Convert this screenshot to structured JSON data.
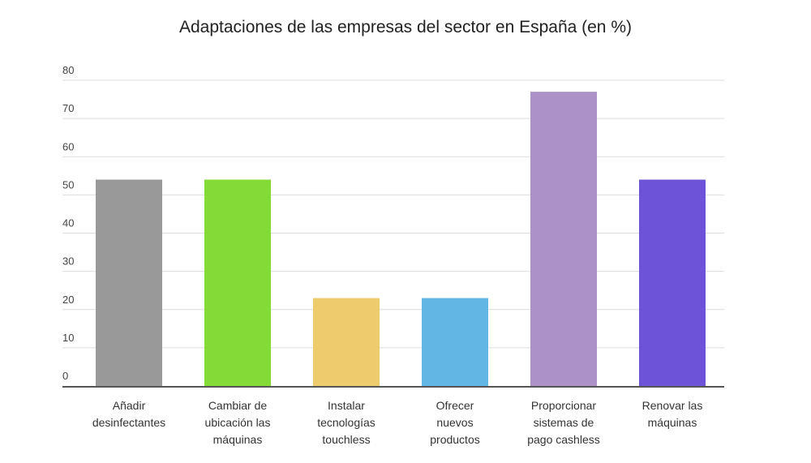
{
  "chart_data": {
    "type": "bar",
    "title": "Adaptaciones de las empresas del sector en España (en %)",
    "xlabel": "",
    "ylabel": "",
    "ylim": [
      0,
      80
    ],
    "yticks": [
      "0",
      "10",
      "20",
      "30",
      "40",
      "50",
      "60",
      "70",
      "80"
    ],
    "grid": true,
    "categories": [
      [
        "Añadir",
        "desinfectantes"
      ],
      [
        "Cambiar de",
        "ubicación las",
        "máquinas"
      ],
      [
        "Instalar",
        "tecnologías",
        "touchless"
      ],
      [
        "Ofrecer",
        "nuevos",
        "productos"
      ],
      [
        "Proporcionar",
        "sistemas de",
        "pago cashless"
      ],
      [
        "Renovar las",
        "máquinas"
      ]
    ],
    "values": [
      54,
      54,
      23,
      23,
      77,
      54
    ],
    "colors": [
      "#999999",
      "#84db36",
      "#eecb6c",
      "#62b6e3",
      "#ab91c6",
      "#6d53d8"
    ]
  }
}
